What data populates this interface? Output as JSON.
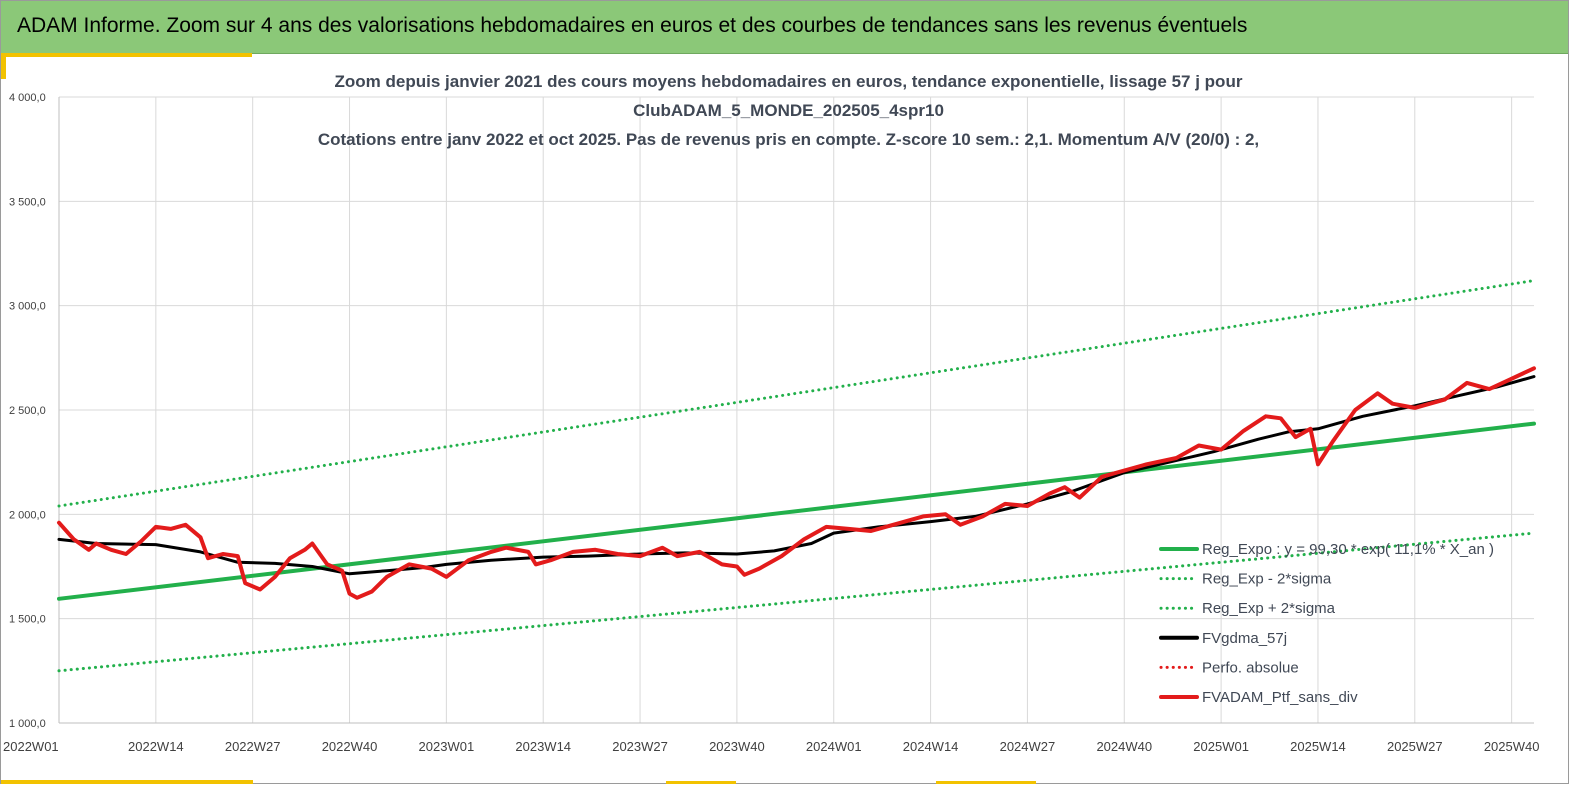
{
  "header": {
    "title": "ADAM Informe. Zoom sur 4 ans des valorisations hebdomadaires en euros et des courbes de tendances sans les revenus éventuels"
  },
  "colors": {
    "banner": "#8bc878",
    "accent": "#f2c200",
    "trend": "#22b04b",
    "smoothed": "#000000",
    "portfolio": "#e31b1b",
    "grid": "#d9d9d9"
  },
  "chart_data": {
    "type": "line",
    "title_lines": [
      "Zoom depuis janvier 2021 des cours moyens hebdomadaires  en euros, tendance exponentielle, lissage 57 j pour",
      "ClubADAM_5_MONDE_202505_4spr10",
      "Cotations  entre janv 2022 et oct 2025. Pas de revenus pris en compte. Z-score 10 sem.: 2,1. Momentum A/V (20/0) : 2,"
    ],
    "xlabel": "",
    "ylabel": "",
    "ylim": [
      1000,
      4000
    ],
    "y_ticks": [
      "1 000,0",
      "1 500,0",
      "2 000,0",
      "2 500,0",
      "3 000,0",
      "3 500,0",
      "4 000,0"
    ],
    "x_ticks": [
      "2022W01",
      "2022W14",
      "2022W27",
      "2022W40",
      "2023W01",
      "2023W14",
      "2023W27",
      "2023W40",
      "2024W01",
      "2024W14",
      "2024W27",
      "2024W40",
      "2025W01",
      "2025W14",
      "2025W27",
      "2025W40"
    ],
    "x_range": [
      "2022W01",
      "2025W43"
    ],
    "grid": "vertical and horizontal",
    "legend_position": "bottom-right",
    "series": [
      {
        "name": "Reg_Expo : y = 99,30 * exp( 11,1% * X_an )",
        "style": "solid",
        "color": "#22b04b",
        "points": [
          [
            "2022W01",
            1595
          ],
          [
            "2025W43",
            2435
          ]
        ]
      },
      {
        "name": "Reg_Exp - 2*sigma",
        "style": "dotted",
        "color": "#22b04b",
        "points": [
          [
            "2022W01",
            1250
          ],
          [
            "2025W43",
            1910
          ]
        ]
      },
      {
        "name": "Reg_Exp + 2*sigma",
        "style": "dotted",
        "color": "#22b04b",
        "points": [
          [
            "2022W01",
            2040
          ],
          [
            "2025W43",
            3120
          ]
        ]
      },
      {
        "name": "FVgdma_57j",
        "style": "solid",
        "color": "#000000",
        "points": [
          [
            "2022W01",
            1880
          ],
          [
            "2022W06",
            1860
          ],
          [
            "2022W14",
            1855
          ],
          [
            "2022W20",
            1820
          ],
          [
            "2022W25",
            1770
          ],
          [
            "2022W30",
            1765
          ],
          [
            "2022W35",
            1750
          ],
          [
            "2022W40",
            1715
          ],
          [
            "2022W45",
            1730
          ],
          [
            "2022W50",
            1745
          ],
          [
            "2023W01",
            1760
          ],
          [
            "2023W07",
            1780
          ],
          [
            "2023W14",
            1795
          ],
          [
            "2023W20",
            1800
          ],
          [
            "2023W27",
            1810
          ],
          [
            "2023W33",
            1815
          ],
          [
            "2023W40",
            1810
          ],
          [
            "2023W45",
            1825
          ],
          [
            "2023W50",
            1860
          ],
          [
            "2024W01",
            1910
          ],
          [
            "2024W07",
            1940
          ],
          [
            "2024W14",
            1965
          ],
          [
            "2024W20",
            1990
          ],
          [
            "2024W27",
            2050
          ],
          [
            "2024W33",
            2110
          ],
          [
            "2024W40",
            2200
          ],
          [
            "2024W46",
            2250
          ],
          [
            "2024W52",
            2300
          ],
          [
            "2025W06",
            2360
          ],
          [
            "2025W10",
            2395
          ],
          [
            "2025W14",
            2410
          ],
          [
            "2025W20",
            2470
          ],
          [
            "2025W27",
            2520
          ],
          [
            "2025W33",
            2570
          ],
          [
            "2025W38",
            2610
          ],
          [
            "2025W43",
            2660
          ]
        ]
      },
      {
        "name": "Perfo. absolue",
        "style": "dotted",
        "color": "#e31b1b",
        "points": []
      },
      {
        "name": "FVADAM_Ptf_sans_div",
        "style": "solid",
        "color": "#e31b1b",
        "points": [
          [
            "2022W01",
            1960
          ],
          [
            "2022W03",
            1880
          ],
          [
            "2022W05",
            1830
          ],
          [
            "2022W06",
            1860
          ],
          [
            "2022W08",
            1830
          ],
          [
            "2022W10",
            1810
          ],
          [
            "2022W12",
            1870
          ],
          [
            "2022W14",
            1940
          ],
          [
            "2022W16",
            1930
          ],
          [
            "2022W18",
            1950
          ],
          [
            "2022W20",
            1890
          ],
          [
            "2022W21",
            1790
          ],
          [
            "2022W23",
            1810
          ],
          [
            "2022W25",
            1800
          ],
          [
            "2022W26",
            1670
          ],
          [
            "2022W28",
            1640
          ],
          [
            "2022W30",
            1700
          ],
          [
            "2022W32",
            1790
          ],
          [
            "2022W34",
            1830
          ],
          [
            "2022W35",
            1860
          ],
          [
            "2022W37",
            1760
          ],
          [
            "2022W39",
            1730
          ],
          [
            "2022W40",
            1620
          ],
          [
            "2022W41",
            1600
          ],
          [
            "2022W43",
            1630
          ],
          [
            "2022W45",
            1700
          ],
          [
            "2022W48",
            1760
          ],
          [
            "2022W51",
            1740
          ],
          [
            "2023W01",
            1700
          ],
          [
            "2023W04",
            1780
          ],
          [
            "2023W07",
            1820
          ],
          [
            "2023W09",
            1840
          ],
          [
            "2023W12",
            1820
          ],
          [
            "2023W13",
            1760
          ],
          [
            "2023W15",
            1780
          ],
          [
            "2023W18",
            1820
          ],
          [
            "2023W21",
            1830
          ],
          [
            "2023W24",
            1810
          ],
          [
            "2023W27",
            1800
          ],
          [
            "2023W30",
            1840
          ],
          [
            "2023W32",
            1800
          ],
          [
            "2023W35",
            1820
          ],
          [
            "2023W38",
            1760
          ],
          [
            "2023W40",
            1750
          ],
          [
            "2023W41",
            1710
          ],
          [
            "2023W43",
            1740
          ],
          [
            "2023W46",
            1800
          ],
          [
            "2023W49",
            1880
          ],
          [
            "2023W52",
            1940
          ],
          [
            "2024W03",
            1930
          ],
          [
            "2024W06",
            1920
          ],
          [
            "2024W10",
            1960
          ],
          [
            "2024W13",
            1990
          ],
          [
            "2024W16",
            2000
          ],
          [
            "2024W18",
            1950
          ],
          [
            "2024W21",
            1990
          ],
          [
            "2024W24",
            2050
          ],
          [
            "2024W27",
            2040
          ],
          [
            "2024W30",
            2100
          ],
          [
            "2024W32",
            2130
          ],
          [
            "2024W34",
            2080
          ],
          [
            "2024W37",
            2180
          ],
          [
            "2024W40",
            2210
          ],
          [
            "2024W43",
            2240
          ],
          [
            "2024W47",
            2270
          ],
          [
            "2024W50",
            2330
          ],
          [
            "2025W01",
            2310
          ],
          [
            "2025W04",
            2400
          ],
          [
            "2025W07",
            2470
          ],
          [
            "2025W09",
            2460
          ],
          [
            "2025W11",
            2370
          ],
          [
            "2025W13",
            2410
          ],
          [
            "2025W14",
            2240
          ],
          [
            "2025W16",
            2350
          ],
          [
            "2025W19",
            2500
          ],
          [
            "2025W22",
            2580
          ],
          [
            "2025W24",
            2530
          ],
          [
            "2025W27",
            2510
          ],
          [
            "2025W31",
            2550
          ],
          [
            "2025W34",
            2630
          ],
          [
            "2025W37",
            2600
          ],
          [
            "2025W40",
            2650
          ],
          [
            "2025W43",
            2700
          ]
        ]
      }
    ]
  }
}
